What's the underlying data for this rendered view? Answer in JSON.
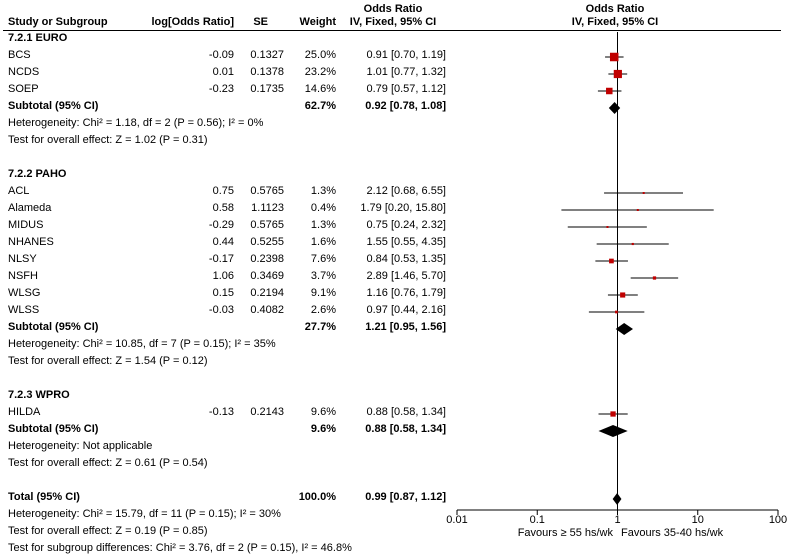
{
  "header": {
    "col_study": "Study or Subgroup",
    "col_logor": "log[Odds Ratio]",
    "col_se": "SE",
    "col_weight": "Weight",
    "col_or_title": "Odds Ratio",
    "col_or_sub": "IV, Fixed, 95% CI",
    "plot_title": "Odds Ratio",
    "plot_sub": "IV, Fixed, 95% CI"
  },
  "chart_data": {
    "type": "forest",
    "scale": "log",
    "xlim": [
      0.01,
      100
    ],
    "ticks": [
      "0.01",
      "0.1",
      "1",
      "10",
      "100"
    ],
    "favours_left": "Favours ≥ 55 hs/wk",
    "favours_right": "Favours 35-40 hs/wk",
    "rows": [
      {
        "kind": "group",
        "label": "7.2.1 EURO"
      },
      {
        "kind": "study",
        "name": "BCS",
        "logor": "-0.09",
        "se": "0.1327",
        "weight": "25.0%",
        "ci": "0.91 [0.70, 1.19]",
        "or": 0.91,
        "lo": 0.7,
        "hi": 1.19,
        "w": 25.0
      },
      {
        "kind": "study",
        "name": "NCDS",
        "logor": "0.01",
        "se": "0.1378",
        "weight": "23.2%",
        "ci": "1.01 [0.77, 1.32]",
        "or": 1.01,
        "lo": 0.77,
        "hi": 1.32,
        "w": 23.2
      },
      {
        "kind": "study",
        "name": "SOEP",
        "logor": "-0.23",
        "se": "0.1735",
        "weight": "14.6%",
        "ci": "0.79 [0.57, 1.12]",
        "or": 0.79,
        "lo": 0.57,
        "hi": 1.12,
        "w": 14.6
      },
      {
        "kind": "subtotal",
        "name": "Subtotal (95% CI)",
        "weight": "62.7%",
        "ci": "0.92 [0.78, 1.08]",
        "or": 0.92,
        "lo": 0.78,
        "hi": 1.08
      },
      {
        "kind": "note",
        "text": "Heterogeneity: Chi² = 1.18, df = 2 (P = 0.56); I² = 0%"
      },
      {
        "kind": "note",
        "text": "Test for overall effect: Z = 1.02 (P = 0.31)"
      },
      {
        "kind": "blank"
      },
      {
        "kind": "group",
        "label": "7.2.2 PAHO"
      },
      {
        "kind": "study",
        "name": "ACL",
        "logor": "0.75",
        "se": "0.5765",
        "weight": "1.3%",
        "ci": "2.12 [0.68, 6.55]",
        "or": 2.12,
        "lo": 0.68,
        "hi": 6.55,
        "w": 1.3
      },
      {
        "kind": "study",
        "name": "Alameda",
        "logor": "0.58",
        "se": "1.1123",
        "weight": "0.4%",
        "ci": "1.79 [0.20, 15.80]",
        "or": 1.79,
        "lo": 0.2,
        "hi": 15.8,
        "w": 0.4
      },
      {
        "kind": "study",
        "name": "MIDUS",
        "logor": "-0.29",
        "se": "0.5765",
        "weight": "1.3%",
        "ci": "0.75 [0.24, 2.32]",
        "or": 0.75,
        "lo": 0.24,
        "hi": 2.32,
        "w": 1.3
      },
      {
        "kind": "study",
        "name": "NHANES",
        "logor": "0.44",
        "se": "0.5255",
        "weight": "1.6%",
        "ci": "1.55 [0.55, 4.35]",
        "or": 1.55,
        "lo": 0.55,
        "hi": 4.35,
        "w": 1.6
      },
      {
        "kind": "study",
        "name": "NLSY",
        "logor": "-0.17",
        "se": "0.2398",
        "weight": "7.6%",
        "ci": "0.84 [0.53, 1.35]",
        "or": 0.84,
        "lo": 0.53,
        "hi": 1.35,
        "w": 7.6
      },
      {
        "kind": "study",
        "name": "NSFH",
        "logor": "1.06",
        "se": "0.3469",
        "weight": "3.7%",
        "ci": "2.89 [1.46, 5.70]",
        "or": 2.89,
        "lo": 1.46,
        "hi": 5.7,
        "w": 3.7
      },
      {
        "kind": "study",
        "name": "WLSG",
        "logor": "0.15",
        "se": "0.2194",
        "weight": "9.1%",
        "ci": "1.16 [0.76, 1.79]",
        "or": 1.16,
        "lo": 0.76,
        "hi": 1.79,
        "w": 9.1
      },
      {
        "kind": "study",
        "name": "WLSS",
        "logor": "-0.03",
        "se": "0.4082",
        "weight": "2.6%",
        "ci": "0.97 [0.44, 2.16]",
        "or": 0.97,
        "lo": 0.44,
        "hi": 2.16,
        "w": 2.6
      },
      {
        "kind": "subtotal",
        "name": "Subtotal (95% CI)",
        "weight": "27.7%",
        "ci": "1.21 [0.95, 1.56]",
        "or": 1.21,
        "lo": 0.95,
        "hi": 1.56
      },
      {
        "kind": "note",
        "text": "Heterogeneity: Chi² = 10.85, df = 7 (P = 0.15); I² = 35%"
      },
      {
        "kind": "note",
        "text": "Test for overall effect: Z = 1.54 (P = 0.12)"
      },
      {
        "kind": "blank"
      },
      {
        "kind": "group",
        "label": "7.2.3 WPRO"
      },
      {
        "kind": "study",
        "name": "HILDA",
        "logor": "-0.13",
        "se": "0.2143",
        "weight": "9.6%",
        "ci": "0.88 [0.58, 1.34]",
        "or": 0.88,
        "lo": 0.58,
        "hi": 1.34,
        "w": 9.6
      },
      {
        "kind": "subtotal",
        "name": "Subtotal (95% CI)",
        "weight": "9.6%",
        "ci": "0.88 [0.58, 1.34]",
        "or": 0.88,
        "lo": 0.58,
        "hi": 1.34
      },
      {
        "kind": "note",
        "text": "Heterogeneity: Not applicable"
      },
      {
        "kind": "note",
        "text": "Test for overall effect: Z = 0.61 (P = 0.54)"
      },
      {
        "kind": "blank"
      },
      {
        "kind": "total",
        "name": "Total (95% CI)",
        "weight": "100.0%",
        "ci": "0.99 [0.87, 1.12]",
        "or": 0.99,
        "lo": 0.87,
        "hi": 1.12
      },
      {
        "kind": "note",
        "text": "Heterogeneity: Chi² = 15.79, df = 11 (P = 0.15); I² = 30%"
      },
      {
        "kind": "note",
        "text": "Test for overall effect: Z = 0.19 (P = 0.85)"
      },
      {
        "kind": "note",
        "text": "Test for subgroup differences: Chi² = 3.76, df = 2 (P = 0.15), I² = 46.8%"
      }
    ]
  },
  "colors": {
    "square": "#c00000",
    "diamond": "#000000",
    "line": "#000000"
  }
}
